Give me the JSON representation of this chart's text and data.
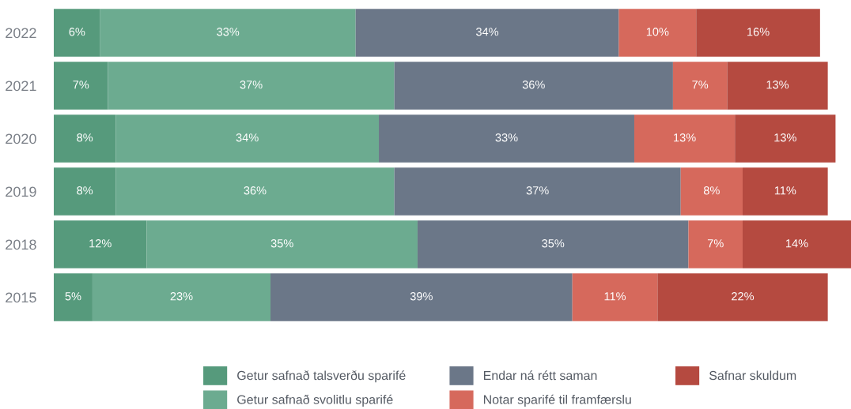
{
  "chart_data": {
    "type": "bar",
    "orientation": "horizontal",
    "stacked": true,
    "legend": "bottom",
    "grid": false,
    "tick_labels": "y",
    "categories": [
      "2022",
      "2021",
      "2020",
      "2019",
      "2018",
      "2015"
    ],
    "series": [
      {
        "name": "Getur safnað talsverðu sparifé",
        "color": "#569a7c",
        "values": [
          6,
          7,
          8,
          8,
          12,
          5
        ],
        "value_labels": [
          "6%",
          "7%",
          "8%",
          "8%",
          "12%",
          "5%"
        ]
      },
      {
        "name": "Getur safnað svolitlu sparifé",
        "color": "#6cab90",
        "values": [
          33,
          37,
          34,
          36,
          35,
          23
        ],
        "value_labels": [
          "33%",
          "37%",
          "34%",
          "36%",
          "35%",
          "23%"
        ]
      },
      {
        "name": "Endar ná rétt saman",
        "color": "#6b7788",
        "values": [
          34,
          36,
          33,
          37,
          35,
          39
        ],
        "value_labels": [
          "34%",
          "36%",
          "33%",
          "37%",
          "35%",
          "39%"
        ]
      },
      {
        "name": "Notar sparifé til framfærslu",
        "color": "#d6695c",
        "values": [
          10,
          7,
          13,
          8,
          7,
          11
        ],
        "value_labels": [
          "10%",
          "7%",
          "13%",
          "8%",
          "7%",
          "11%"
        ]
      },
      {
        "name": "Safnar skuldum",
        "color": "#b54a40",
        "values": [
          16,
          13,
          13,
          11,
          14,
          22
        ],
        "value_labels": [
          "16%",
          "13%",
          "13%",
          "11%",
          "14%",
          "22%"
        ]
      }
    ]
  }
}
